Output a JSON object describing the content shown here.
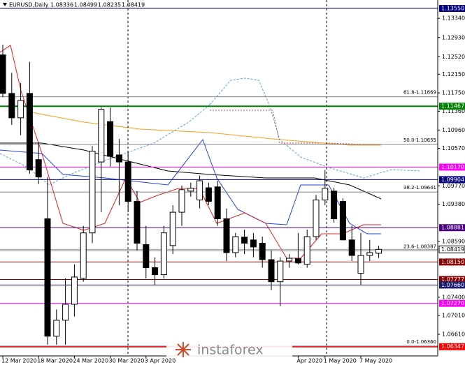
{
  "chart_data": {
    "type": "candlestick",
    "title": "EURUSD,Daily",
    "categories": [
      "12 Mar 2020",
      null,
      null,
      null,
      "18 Mar 2020",
      null,
      null,
      null,
      "24 Mar 2020",
      null,
      null,
      null,
      "30 Mar 2020",
      null,
      null,
      null,
      "3 Apr 2020",
      null,
      null,
      null,
      null,
      null,
      null,
      null,
      null,
      null,
      null,
      null,
      null,
      null,
      null,
      null,
      null,
      "Apr 2020",
      null,
      null,
      "1 May 2020",
      null,
      null,
      null,
      "7 May 2020",
      null,
      null
    ],
    "open": [
      1.1256,
      1.1174,
      1.1122,
      1.1174,
      1.1033,
      1.0907,
      1.0657,
      1.0691,
      1.0725,
      1.078,
      1.0877,
      1.1028,
      1.1114,
      1.1043,
      1.1028,
      1.0944,
      1.0852,
      1.0803,
      1.0788,
      1.085,
      1.0921,
      1.0966,
      1.0947,
      1.0973,
      1.0975,
      1.0907,
      1.0835,
      1.0868,
      1.0862,
      1.0855,
      1.082,
      1.0773,
      1.0817,
      1.0822,
      1.081,
      1.0869,
      1.0947,
      1.0966,
      1.0944,
      1.0862,
      1.0791,
      1.0829,
      1.08336
    ],
    "high": [
      1.1278,
      1.1218,
      1.1196,
      1.1241,
      1.107,
      1.0996,
      1.0714,
      1.078,
      1.081,
      1.0892,
      1.1062,
      1.1144,
      1.1144,
      1.1077,
      1.1048,
      1.0966,
      1.0892,
      1.0825,
      1.0892,
      1.0936,
      1.0978,
      1.0984,
      1.0999,
      1.0984,
      1.0988,
      1.0929,
      1.0877,
      1.0884,
      1.0877,
      1.0869,
      1.084,
      1.0825,
      1.0832,
      1.0877,
      1.0884,
      1.0958,
      1.1011,
      1.0973,
      1.0951,
      1.0892,
      1.0877,
      1.0862,
      1.08499
    ],
    "low": [
      1.1166,
      1.1107,
      1.1085,
      1.1003,
      1.0981,
      1.0639,
      1.0639,
      1.0639,
      1.0699,
      1.0773,
      1.0855,
      1.0921,
      1.1018,
      1.0936,
      1.0921,
      1.084,
      1.078,
      1.0766,
      1.078,
      1.0832,
      1.0892,
      1.0954,
      1.0929,
      1.0936,
      1.0892,
      1.0817,
      1.0825,
      1.0832,
      1.0825,
      1.0803,
      1.0755,
      1.0721,
      1.0803,
      1.081,
      1.0803,
      1.0862,
      1.0936,
      1.0899,
      1.0862,
      1.0817,
      1.0766,
      1.0817,
      1.08235
    ],
    "close": [
      1.1174,
      1.1122,
      1.1159,
      1.1011,
      1.0996,
      1.0657,
      1.0691,
      1.0725,
      1.0783,
      1.0877,
      1.1051,
      1.114,
      1.104,
      1.1028,
      1.0944,
      1.0855,
      1.0803,
      1.0788,
      1.0877,
      1.0921,
      1.0969,
      1.0972,
      1.0988,
      1.0944,
      1.0907,
      1.0835,
      1.0869,
      1.0855,
      1.0847,
      1.082,
      1.0773,
      1.0817,
      1.0823,
      1.0813,
      1.0869,
      1.0947,
      1.0972,
      1.0907,
      1.0862,
      1.0829,
      1.0829,
      1.0835,
      1.08419
    ],
    "ylim": [
      1.0615,
      1.13729
    ],
    "yticks": [
      {
        "value": 1.1334,
        "label": "1.13340"
      },
      {
        "value": 1.1293,
        "label": "1.12930"
      },
      {
        "value": 1.1252,
        "label": "1.12520"
      },
      {
        "value": 1.1215,
        "label": "1.12150"
      },
      {
        "value": 1.1175,
        "label": "1.11750"
      },
      {
        "value": 1.1136,
        "label": "1.11360"
      },
      {
        "value": 1.1096,
        "label": "1.10960"
      },
      {
        "value": 1.1057,
        "label": "1.10570"
      },
      {
        "value": 1.0977,
        "label": "1.09770"
      },
      {
        "value": 1.0938,
        "label": "1.09380"
      },
      {
        "value": 1.0859,
        "label": "1.08590"
      },
      {
        "value": 1.074,
        "label": "1.07400"
      },
      {
        "value": 1.0701,
        "label": "1.07010"
      },
      {
        "value": 1.0661,
        "label": "1.06610"
      }
    ],
    "levels": [
      {
        "value": 1.1355,
        "label": "1.13550",
        "color": "#000080"
      },
      {
        "value": 1.11467,
        "label": "1.11467",
        "color": "#008000"
      },
      {
        "value": 1.1017,
        "label": "1.10170",
        "color": "#ff00ff"
      },
      {
        "value": 1.09904,
        "label": "1.09904",
        "color": "#000080"
      },
      {
        "value": 1.08881,
        "label": "1.08881",
        "color": "#4b0082"
      },
      {
        "value": 1.0815,
        "label": "1.08150",
        "color": "#8b0000"
      },
      {
        "value": 1.07777,
        "label": "1.07777",
        "color": "#8b0000"
      },
      {
        "value": 1.0766,
        "label": "1.07660",
        "color": "#191970"
      },
      {
        "value": 1.0727,
        "label": "1.07270",
        "color": "#ff00ff"
      },
      {
        "value": 1.06347,
        "label": "1.06347",
        "color": "#ff0000"
      }
    ],
    "fib_levels": [
      {
        "value": 1.11669,
        "label": "61.8-1.11669"
      },
      {
        "value": 1.10655,
        "label": "50.0-1.10655"
      },
      {
        "value": 1.09641,
        "label": "38.2-1.09641"
      },
      {
        "value": 1.08387,
        "label": "23.6-1.08387"
      },
      {
        "value": 1.0636,
        "label": "0.0-1.06360"
      }
    ],
    "current_price": {
      "value": 1.08419,
      "label": "1.08419"
    }
  },
  "watermark": "instaforex"
}
